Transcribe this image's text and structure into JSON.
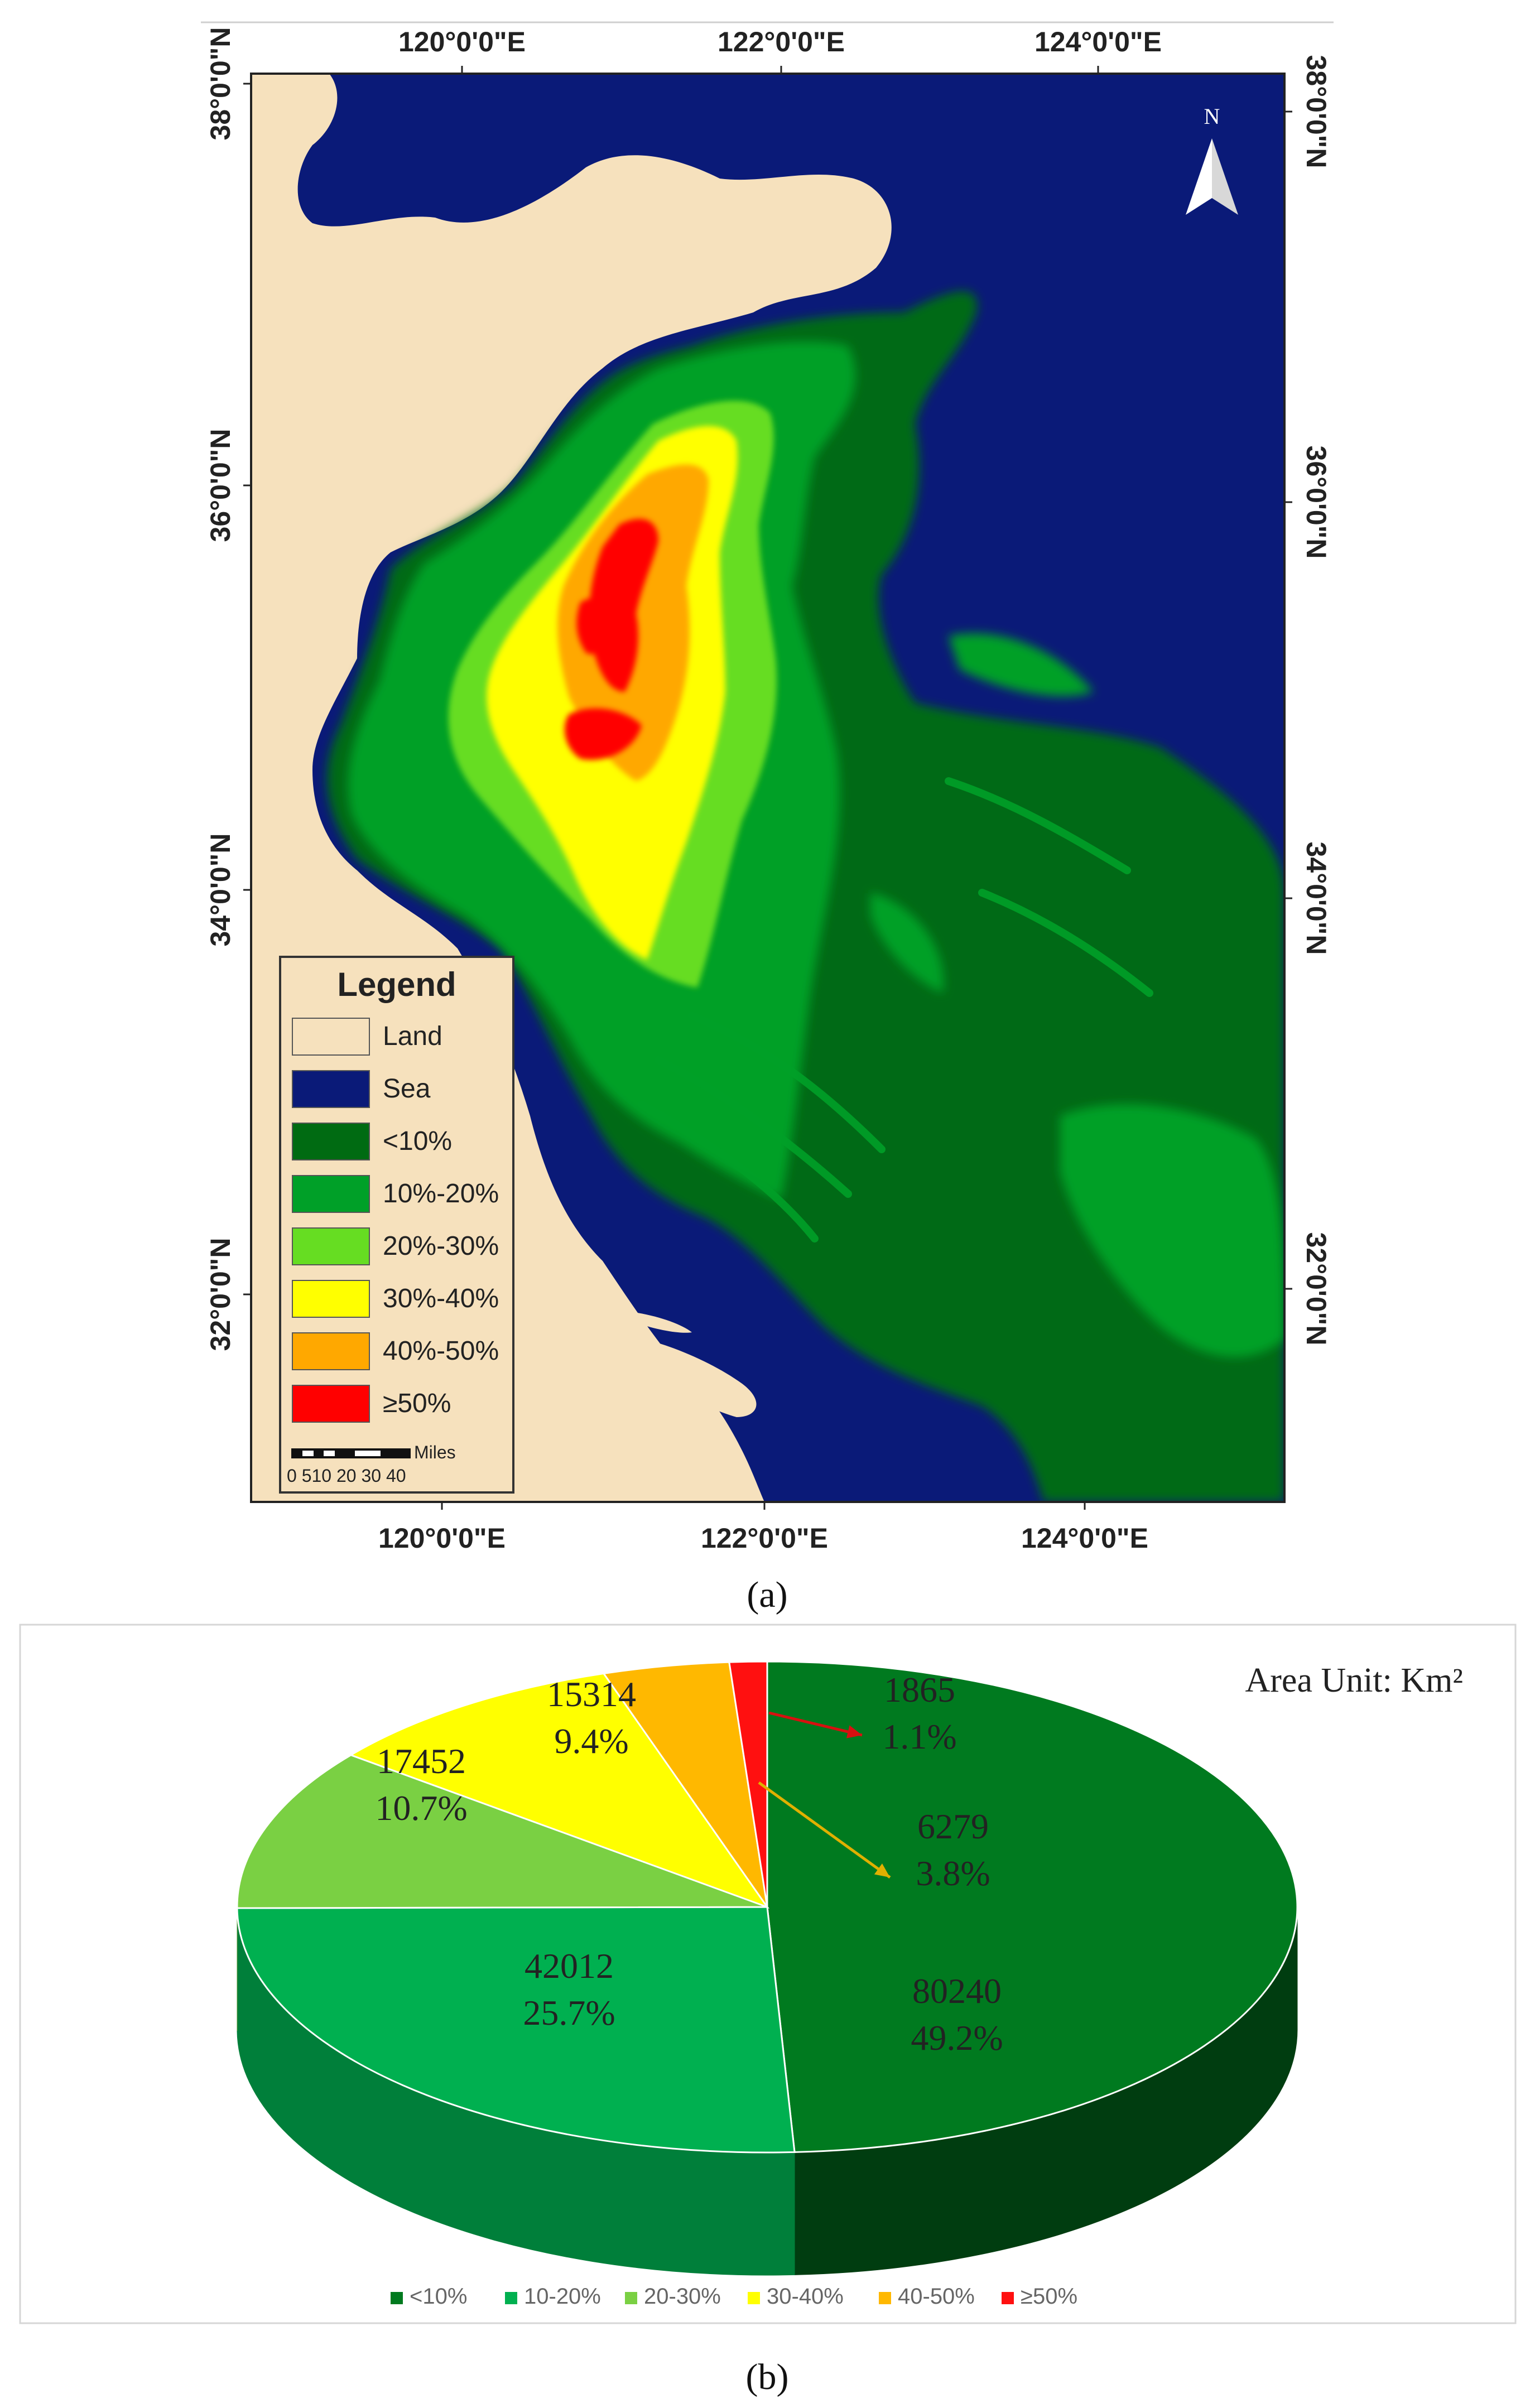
{
  "colors": {
    "land": "#F6E1BD",
    "sea": "#0A1A78",
    "lt10": "#006B12",
    "p10_20": "#00A028",
    "p20_30": "#66DD22",
    "p30_40": "#FFFF00",
    "p40_50": "#FFA800",
    "ge50": "#FF0000",
    "pie_lt10": "#007A1F",
    "pie_10_20": "#00B050",
    "pie_20_30": "#7AD043",
    "pie_30_40": "#FFFF00",
    "pie_40_50": "#FFB800",
    "pie_ge50": "#FF1010"
  },
  "panel_a": {
    "caption": "(a)",
    "top_lon_labels": [
      "120°0'0\"E",
      "122°0'0\"E",
      "124°0'0\"E"
    ],
    "bottom_lon_labels": [
      "120°0'0\"E",
      "122°0'0\"E",
      "124°0'0\"E"
    ],
    "left_lat_labels": [
      "38°0'0\"N",
      "36°0'0\"N",
      "34°0'0\"N",
      "32°0'0\"N"
    ],
    "right_lat_labels": [
      "38°0'0\"N",
      "36°0'0\"N",
      "34°0'0\"N",
      "32°0'0\"N"
    ],
    "north_label": "N",
    "legend": {
      "title": "Legend",
      "items": [
        "Land",
        "Sea",
        "<10%",
        "10%-20%",
        "20%-30%",
        "30%-40%",
        "40%-50%",
        "≥50%"
      ],
      "scale_unit": "Miles",
      "scale_ticks": "0 510 20 30 40"
    }
  },
  "panel_b": {
    "caption": "(b)",
    "unit_label": "Area Unit: Km²"
  },
  "chart_data": {
    "type": "pie",
    "unit": "Km²",
    "categories": [
      "<10%",
      "10-20%",
      "20-30%",
      "30-40%",
      "40-50%",
      "≥50%"
    ],
    "values": [
      80240,
      42012,
      17452,
      15314,
      6279,
      1865
    ],
    "percent_labels": [
      "49.2%",
      "25.7%",
      "10.7%",
      "9.4%",
      "3.8%",
      "1.1%"
    ],
    "legend_position": "bottom"
  }
}
